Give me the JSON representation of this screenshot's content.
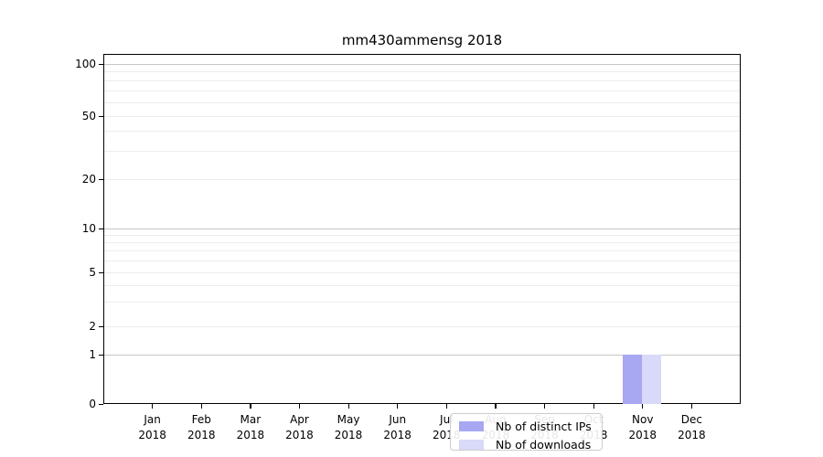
{
  "chart_data": {
    "type": "bar",
    "title": "mm430ammensg 2018",
    "x_categories": [
      {
        "month": "Jan",
        "year": "2018"
      },
      {
        "month": "Feb",
        "year": "2018"
      },
      {
        "month": "Mar",
        "year": "2018"
      },
      {
        "month": "Apr",
        "year": "2018"
      },
      {
        "month": "May",
        "year": "2018"
      },
      {
        "month": "Jun",
        "year": "2018"
      },
      {
        "month": "Jul",
        "year": "2018"
      },
      {
        "month": "Aug",
        "year": "2018"
      },
      {
        "month": "Sep",
        "year": "2018"
      },
      {
        "month": "Oct",
        "year": "2018"
      },
      {
        "month": "Nov",
        "year": "2018"
      },
      {
        "month": "Dec",
        "year": "2018"
      }
    ],
    "y_axis": {
      "scale": "symlog",
      "ticks": [
        0,
        1,
        2,
        5,
        10,
        20,
        50,
        100
      ],
      "minor_gridline_values": [
        3,
        4,
        6,
        7,
        8,
        9,
        30,
        40,
        60,
        70,
        80,
        90
      ],
      "major_gridline_values": [
        1,
        10,
        100
      ]
    },
    "series": [
      {
        "name": "Nb of distinct IPs",
        "color": "#a7a7f2",
        "values": [
          0,
          0,
          0,
          0,
          0,
          0,
          0,
          0,
          0,
          0,
          1,
          0
        ]
      },
      {
        "name": "Nb of downloads",
        "color": "#d9d9f9",
        "values": [
          0,
          0,
          0,
          0,
          0,
          0,
          0,
          0,
          0,
          0,
          1,
          0
        ]
      }
    ],
    "legend_position": "lower center",
    "grid": "horizontal",
    "colors": {
      "major_grid": "#c6c6c6",
      "minor_grid": "#ececec",
      "spine": "#000000"
    }
  }
}
